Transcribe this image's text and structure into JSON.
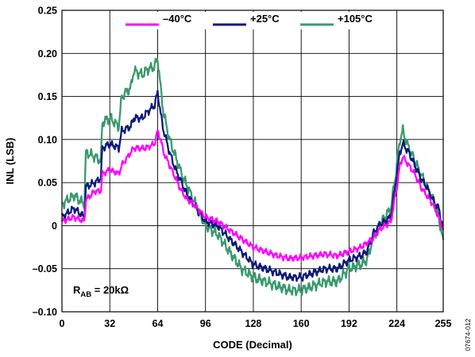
{
  "chart_data": {
    "type": "line",
    "xlabel": "CODE (Decimal)",
    "ylabel": "INL (LSB)",
    "xlim": [
      0,
      255
    ],
    "ylim": [
      -0.1,
      0.25
    ],
    "x_ticks": [
      "0",
      "32",
      "64",
      "96",
      "128",
      "160",
      "192",
      "224",
      "255"
    ],
    "y_ticks": [
      "0.25",
      "0.20",
      "0.15",
      "0.10",
      "0.05",
      "0",
      "–0.05",
      "–0.10"
    ],
    "x_tick_values": [
      0,
      32,
      64,
      96,
      128,
      160,
      192,
      224,
      255
    ],
    "y_tick_values": [
      0.25,
      0.2,
      0.15,
      0.1,
      0.05,
      0,
      -0.05,
      -0.1
    ],
    "grid": true,
    "legend_position": "top",
    "series": [
      {
        "name": "–40°C",
        "color": "#ff00ff",
        "noise": 0.004,
        "x": [
          0,
          8,
          15,
          16,
          22,
          26,
          27,
          32,
          38,
          40,
          46,
          48,
          54,
          56,
          62,
          64,
          66,
          68,
          72,
          76,
          80,
          84,
          88,
          96,
          104,
          112,
          120,
          128,
          136,
          144,
          152,
          160,
          168,
          176,
          184,
          192,
          200,
          204,
          208,
          212,
          216,
          220,
          224,
          226,
          228,
          232,
          236,
          240,
          244,
          248,
          252,
          255
        ],
        "y": [
          0.005,
          0.01,
          0.005,
          0.03,
          0.04,
          0.04,
          0.06,
          0.065,
          0.06,
          0.07,
          0.085,
          0.09,
          0.09,
          0.09,
          0.095,
          0.11,
          0.1,
          0.085,
          0.07,
          0.055,
          0.04,
          0.03,
          0.025,
          0.01,
          0.005,
          -0.005,
          -0.015,
          -0.025,
          -0.03,
          -0.035,
          -0.038,
          -0.037,
          -0.035,
          -0.033,
          -0.035,
          -0.03,
          -0.025,
          -0.02,
          -0.015,
          -0.005,
          0.0,
          0.005,
          0.045,
          0.07,
          0.08,
          0.07,
          0.06,
          0.045,
          0.035,
          0.025,
          0.01,
          -0.005
        ]
      },
      {
        "name": "+25°C",
        "color": "#0c1a78",
        "noise": 0.005,
        "x": [
          0,
          8,
          15,
          16,
          22,
          26,
          27,
          32,
          38,
          40,
          46,
          48,
          54,
          56,
          62,
          64,
          66,
          68,
          72,
          76,
          80,
          84,
          88,
          96,
          104,
          112,
          120,
          128,
          136,
          144,
          152,
          160,
          168,
          176,
          184,
          192,
          200,
          204,
          208,
          212,
          216,
          220,
          224,
          226,
          228,
          232,
          236,
          240,
          244,
          248,
          252,
          255
        ],
        "y": [
          0.01,
          0.02,
          0.01,
          0.045,
          0.05,
          0.055,
          0.09,
          0.095,
          0.09,
          0.11,
          0.115,
          0.125,
          0.125,
          0.13,
          0.14,
          0.155,
          0.13,
          0.11,
          0.085,
          0.065,
          0.05,
          0.035,
          0.025,
          0.005,
          0.0,
          -0.015,
          -0.03,
          -0.045,
          -0.05,
          -0.055,
          -0.06,
          -0.06,
          -0.055,
          -0.05,
          -0.05,
          -0.04,
          -0.035,
          -0.03,
          -0.01,
          0.0,
          0.005,
          0.01,
          0.06,
          0.085,
          0.095,
          0.085,
          0.07,
          0.055,
          0.045,
          0.03,
          0.02,
          -0.005
        ]
      },
      {
        "name": "+105°C",
        "color": "#3a9a6e",
        "noise": 0.007,
        "x": [
          0,
          8,
          15,
          16,
          22,
          26,
          27,
          32,
          38,
          40,
          46,
          48,
          54,
          56,
          62,
          64,
          66,
          68,
          72,
          76,
          80,
          84,
          88,
          96,
          104,
          112,
          120,
          128,
          136,
          144,
          152,
          160,
          168,
          176,
          184,
          192,
          200,
          204,
          208,
          212,
          216,
          220,
          224,
          226,
          228,
          232,
          236,
          240,
          244,
          248,
          252,
          255
        ],
        "y": [
          0.025,
          0.035,
          0.025,
          0.085,
          0.08,
          0.075,
          0.12,
          0.125,
          0.115,
          0.15,
          0.16,
          0.18,
          0.175,
          0.18,
          0.185,
          0.195,
          0.16,
          0.13,
          0.1,
          0.08,
          0.06,
          0.045,
          0.03,
          0.0,
          -0.01,
          -0.03,
          -0.05,
          -0.06,
          -0.065,
          -0.07,
          -0.075,
          -0.075,
          -0.07,
          -0.065,
          -0.065,
          -0.05,
          -0.045,
          -0.04,
          -0.015,
          0.0,
          0.01,
          0.02,
          0.07,
          0.1,
          0.11,
          0.09,
          0.075,
          0.06,
          0.045,
          0.03,
          0.01,
          -0.02
        ]
      }
    ],
    "annotation": {
      "label_main": "R",
      "label_sub": "AB",
      "label_rest": " = 20kΩ"
    },
    "code_id": "07674-012"
  }
}
